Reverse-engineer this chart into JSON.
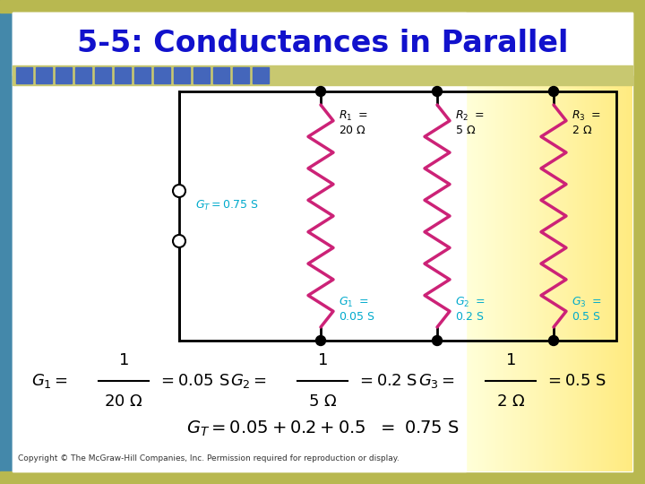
{
  "title": "5-5: Conductances in Parallel",
  "title_color": "#1111cc",
  "title_fontsize": 24,
  "bg_color": "#ffffff",
  "outer_bg": "#c8c870",
  "inner_bg": "#ffffff",
  "header_bar_color": "#4466bb",
  "resistor_color": "#cc2277",
  "label_color": "#00aacc",
  "wire_color": "#000000",
  "copyright_text": "Copyright © The McGraw-Hill Companies, Inc. Permission required for reproduction or display.",
  "gt_color": "#00aacc"
}
